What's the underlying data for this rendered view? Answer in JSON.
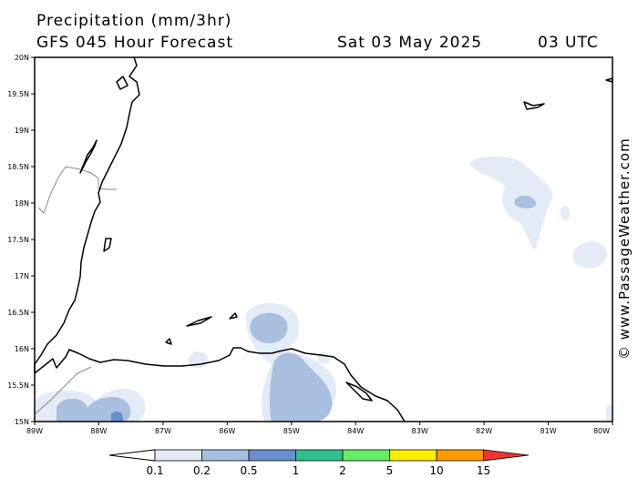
{
  "header": {
    "title": "Precipitation (mm/3hr)",
    "subtitle": "GFS 045 Hour Forecast",
    "date": "Sat 03 May 2025",
    "time": "03 UTC"
  },
  "watermark": "© www.PassageWeather.com",
  "map": {
    "lat_labels": [
      "20N",
      "19.5N",
      "19N",
      "18.5N",
      "18N",
      "17.5N",
      "17N",
      "16.5N",
      "16N",
      "15.5N",
      "15N"
    ],
    "lon_labels": [
      "89W",
      "88W",
      "87W",
      "86W",
      "85W",
      "84W",
      "83W",
      "82W",
      "81W",
      "80W"
    ]
  },
  "legend": {
    "labels": [
      "0.1",
      "0.2",
      "0.5",
      "1",
      "2",
      "5",
      "10",
      "15"
    ],
    "colors": [
      "#ffffff",
      "#e3ebf7",
      "#a9bfe0",
      "#6a8fd0",
      "#2fbf8f",
      "#66ee66",
      "#ffee00",
      "#ff9900",
      "#ee3333"
    ]
  },
  "colors": {
    "precip_light": "#e3ebf7",
    "precip_medium": "#a9bfe0",
    "precip_heavy": "#6a8fd0",
    "coastline": "#000000",
    "border": "#888888"
  }
}
